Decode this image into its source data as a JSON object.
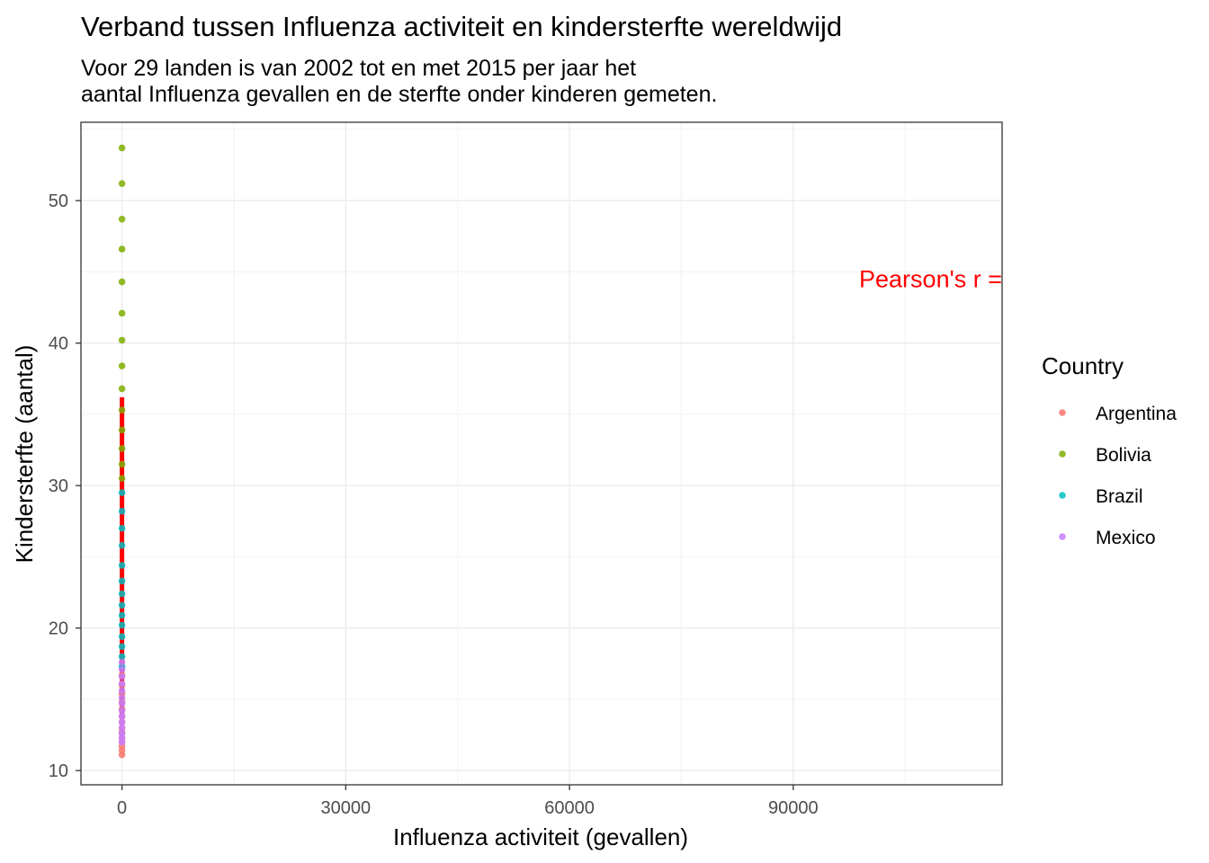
{
  "chart_data": {
    "type": "scatter",
    "title": "Verband tussen Influenza activiteit en kindersterfte wereldwijd",
    "subtitle_lines": [
      "Voor 29 landen is van 2002 tot en met 2015 per jaar het",
      "aantal Influenza gevallen en de sterfte onder kinderen gemeten."
    ],
    "xlabel": "Influenza activiteit (gevallen)",
    "ylabel": "Kindersterfte (aantal)",
    "xlim": [
      -5500,
      118000
    ],
    "ylim": [
      9.0,
      55.5
    ],
    "x_ticks": [
      0,
      30000,
      60000,
      90000
    ],
    "x_tick_labels": [
      "0",
      "30000",
      "60000",
      "90000"
    ],
    "y_ticks": [
      10,
      20,
      30,
      40,
      50
    ],
    "y_tick_labels": [
      "10",
      "20",
      "30",
      "40",
      "50"
    ],
    "grid": true,
    "legend": {
      "title": "Country",
      "position": "right",
      "entries": [
        {
          "name": "Argentina",
          "color": "#F8766D"
        },
        {
          "name": "Bolivia",
          "color": "#7CAE00"
        },
        {
          "name": "Brazil",
          "color": "#00BFC4"
        },
        {
          "name": "Mexico",
          "color": "#C77CFF"
        }
      ]
    },
    "series": [
      {
        "name": "Argentina",
        "color": "#F8766D",
        "x": [
          0,
          0,
          0,
          0,
          0,
          0,
          0,
          0,
          0,
          0,
          0,
          0,
          0,
          0
        ],
        "y": [
          11.1,
          11.4,
          11.7,
          12.0,
          12.3,
          12.7,
          13.0,
          13.4,
          13.8,
          14.3,
          14.8,
          15.4,
          16.0,
          16.7
        ]
      },
      {
        "name": "Bolivia",
        "color": "#7CAE00",
        "x": [
          0,
          0,
          0,
          0,
          0,
          0,
          0,
          0,
          0,
          0,
          0,
          0,
          0,
          0
        ],
        "y": [
          53.7,
          51.2,
          48.7,
          46.6,
          44.3,
          42.1,
          40.2,
          38.4,
          36.8,
          35.3,
          33.9,
          32.6,
          31.5,
          30.5
        ]
      },
      {
        "name": "Brazil",
        "color": "#00BFC4",
        "x": [
          0,
          0,
          0,
          0,
          0,
          0,
          0,
          0,
          0,
          0,
          0,
          0,
          0,
          0
        ],
        "y": [
          29.5,
          28.2,
          27.0,
          25.8,
          24.4,
          23.3,
          22.4,
          21.6,
          20.9,
          20.2,
          19.4,
          18.7,
          18.0,
          17.3
        ]
      },
      {
        "name": "Mexico",
        "color": "#C77CFF",
        "x": [
          0,
          0,
          0,
          0,
          0,
          0,
          0,
          0,
          0,
          0,
          0,
          0,
          0,
          0
        ],
        "y": [
          17.6,
          17.1,
          16.6,
          16.1,
          15.6,
          15.1,
          14.7,
          14.2,
          13.8,
          13.4,
          13.0,
          12.6,
          12.3,
          12.0
        ]
      }
    ],
    "trend_line": {
      "color": "#ff0000",
      "x": [
        0,
        0
      ],
      "y": [
        13.6,
        36.2
      ]
    },
    "annotation": {
      "text": "Pearson's r =",
      "color": "#ff0000",
      "x": 118000,
      "y": 44.5
    }
  }
}
